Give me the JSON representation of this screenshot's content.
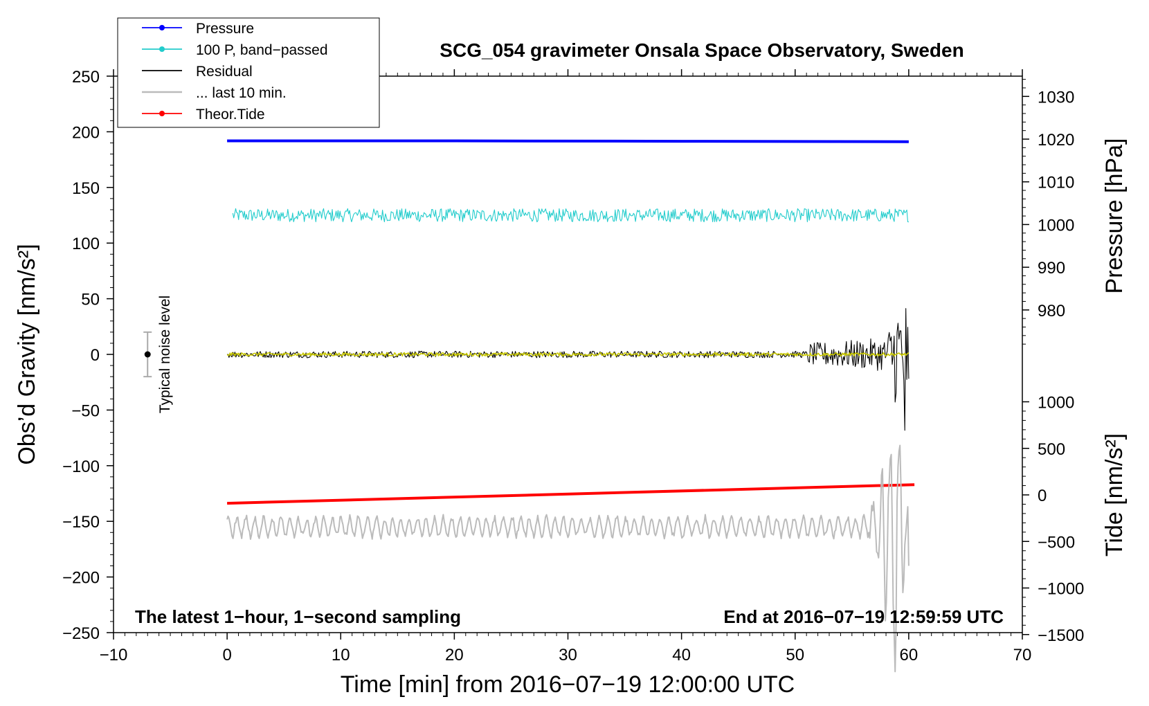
{
  "chart_data": {
    "type": "line",
    "title": "SCG_054 gravimeter Onsala Space Observatory, Sweden",
    "xlabel": "Time [min] from 2016−07−19 12:00:00 UTC",
    "ylabel_left": "Obs’d Gravity [nm/s²]",
    "ylabel_right_pressure": "Pressure [hPa]",
    "ylabel_right_tide": "Tide [nm/s²]",
    "xlim": [
      -10,
      70
    ],
    "ylim_left": [
      -250,
      250
    ],
    "x_ticks": [
      -10,
      0,
      10,
      20,
      30,
      40,
      50,
      60,
      70
    ],
    "x_tick_labels": [
      "−10",
      "0",
      "10",
      "20",
      "30",
      "40",
      "50",
      "60",
      "70"
    ],
    "y_left_ticks": [
      250,
      200,
      150,
      100,
      50,
      0,
      -50,
      -100,
      -150,
      -200,
      -250
    ],
    "y_left_tick_labels": [
      "250",
      "200",
      "150",
      "100",
      "50",
      "0",
      "−50",
      "−100",
      "−150",
      "−200",
      "−250"
    ],
    "pressure_axis": {
      "range": [
        970,
        1035
      ],
      "ticks": [
        1030,
        1020,
        1010,
        1000,
        990,
        980
      ],
      "tick_labels": [
        "1030",
        "1020",
        "1010",
        "1000",
        "990",
        "980"
      ]
    },
    "tide_axis": {
      "range": [
        -1500,
        1100
      ],
      "ticks": [
        1000,
        500,
        0,
        -500,
        -1000,
        -1500
      ],
      "tick_labels": [
        "1000",
        "500",
        "0",
        "−500",
        "−1000",
        "−1500"
      ]
    },
    "legend": {
      "position": "top-left",
      "entries": [
        {
          "label": "Pressure",
          "color": "#0000ff",
          "marker": "dot"
        },
        {
          "label": "100 P, band−passed",
          "color": "#22cccc",
          "marker": "dot"
        },
        {
          "label": "Residual",
          "color": "#000000",
          "marker": "none"
        },
        {
          "label": "... last 10 min.",
          "color": "#bbbbbb",
          "marker": "none"
        },
        {
          "label": "Theor.Tide",
          "color": "#ff0000",
          "marker": "dot"
        }
      ]
    },
    "series": [
      {
        "name": "Pressure",
        "color": "#0000ff",
        "axis": "pressure",
        "x": [
          0,
          20,
          40,
          60
        ],
        "values": [
          1019.6,
          1019.6,
          1019.5,
          1019.4
        ]
      },
      {
        "name": "100 P, band−passed",
        "color": "#22cccc",
        "axis": "left",
        "x_range": [
          0.5,
          60
        ],
        "center": 125,
        "noise_amplitude": 6
      },
      {
        "name": "Residual",
        "color": "#000000",
        "axis": "left",
        "x_range": [
          0,
          60
        ],
        "center": 0,
        "noise_amplitude": 3,
        "tail": {
          "x": [
            51,
            58,
            59.5,
            59.7,
            60
          ],
          "amplitude": [
            10,
            15,
            70,
            85,
            25
          ]
        }
      },
      {
        "name": "Residual (smoothed)",
        "color": "#c8c800",
        "axis": "left",
        "x_range": [
          0,
          60
        ],
        "center": 0,
        "noise_amplitude": 1.5
      },
      {
        "name": "Theor.Tide",
        "color": "#ff0000",
        "axis": "tide",
        "x": [
          0,
          60.5
        ],
        "values": [
          -90,
          110
        ]
      },
      {
        "name": "... last 10 min.",
        "color": "#bbbbbb",
        "axis": "left",
        "x_range": [
          0,
          60
        ],
        "center": -155,
        "noise_amplitude": 8,
        "tail": {
          "x": [
            56.5,
            57.3,
            58.3,
            58.8,
            59.4,
            59.7
          ],
          "amplitude": [
            15,
            30,
            80,
            110,
            70,
            25
          ]
        }
      }
    ],
    "noise_level": {
      "label": "Typical noise level",
      "x": -7,
      "center": 0,
      "low": -20,
      "high": 20
    },
    "annotations": {
      "bottom_left": "The latest 1−hour, 1−second sampling",
      "bottom_right": "End at 2016−07−19 12:59:59 UTC"
    }
  }
}
